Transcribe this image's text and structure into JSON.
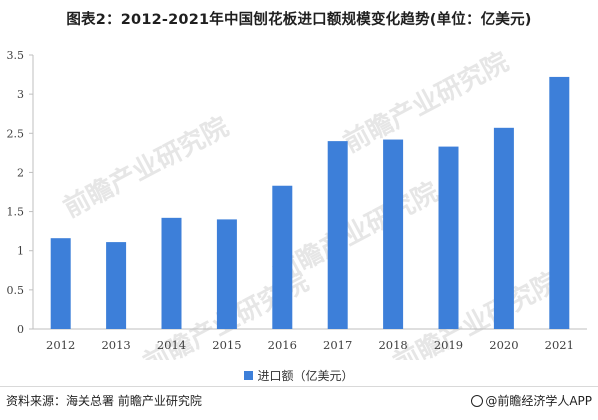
{
  "title": "图表2：2012-2021年中国刨花板进口额规模变化趋势(单位：亿美元)",
  "source": "资料来源：海关总署 前瞻产业研究院",
  "brand": "@前瞻经济学人APP",
  "watermark": "前瞻产业研究院",
  "colors": {
    "bar": "#3d7fd9",
    "axis": "#bfbfbf"
  },
  "chart_data": {
    "type": "bar",
    "categories": [
      "2012",
      "2013",
      "2014",
      "2015",
      "2016",
      "2017",
      "2018",
      "2019",
      "2020",
      "2021"
    ],
    "series": [
      {
        "name": "进口额（亿美元）",
        "values": [
          1.16,
          1.11,
          1.42,
          1.4,
          1.83,
          2.4,
          2.42,
          2.33,
          2.57,
          3.22
        ]
      }
    ],
    "ylim": [
      0,
      3.5
    ],
    "yticks": [
      "0",
      "0.5",
      "1",
      "1.5",
      "2",
      "2.5",
      "3",
      "3.5"
    ],
    "grid": false,
    "legend": "bottom-center"
  }
}
